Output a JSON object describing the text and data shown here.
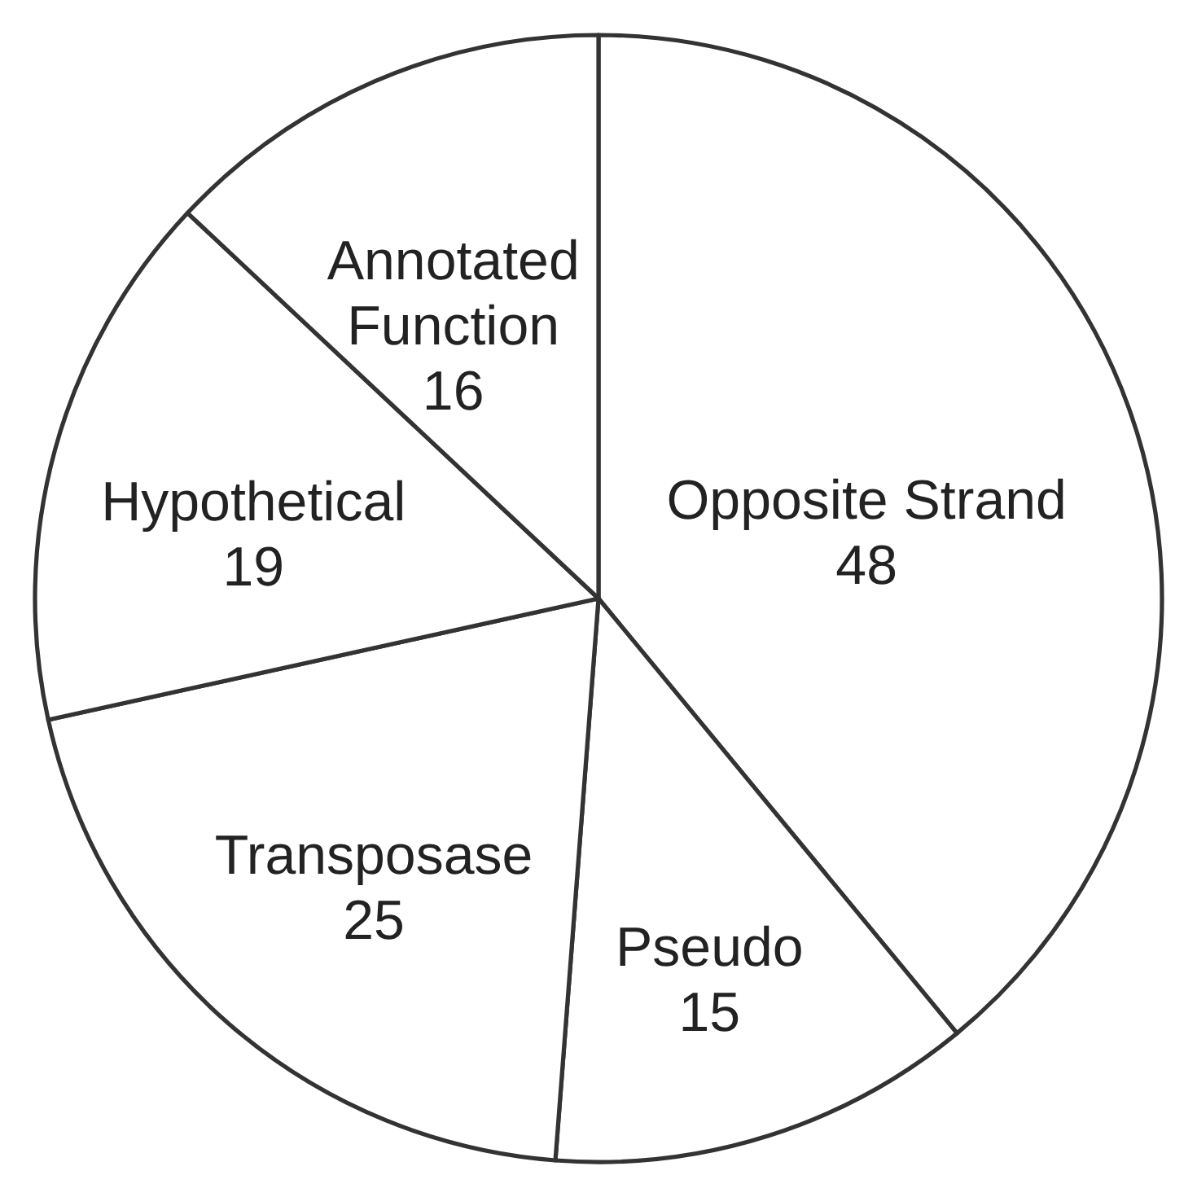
{
  "chart_data": {
    "type": "pie",
    "categories": [
      "Opposite Strand",
      "Pseudo",
      "Transposase",
      "Hypothetical",
      "Annotated Function"
    ],
    "values": [
      48,
      15,
      25,
      19,
      16
    ],
    "colors": [
      "#ffffff",
      "#ffffff",
      "#ffffff",
      "#ffffff",
      "#ffffff"
    ],
    "data_labels": true
  }
}
